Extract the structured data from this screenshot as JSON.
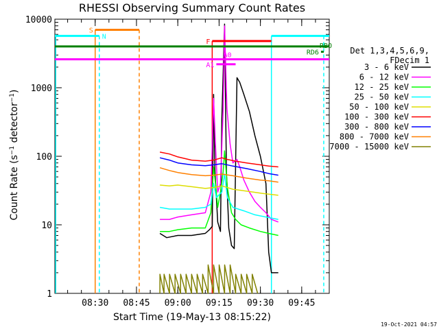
{
  "chart_data": {
    "type": "line",
    "title": "RHESSI Observing Summary Count Rates",
    "xlabel": "Start Time (19-May-13 08:15:22)",
    "ylabel": "Count Rate (s-1 detector-1)",
    "ylabel_parts": {
      "base": "Count Rate (s",
      "sup1": "−1",
      "mid": " detector",
      "sup2": "−1",
      "end": ")"
    },
    "yscale": "log",
    "ylim": [
      1,
      10000
    ],
    "xlim": [
      "08:15:22",
      "09:55:00"
    ],
    "xticks": [
      "08:30",
      "08:45",
      "09:00",
      "09:15",
      "09:30",
      "09:45"
    ],
    "yticks": [
      "1",
      "10",
      "100",
      "1000",
      "10000"
    ],
    "legend_header": [
      "Det 1,3,4,5,6,9,",
      "FDecim 1"
    ],
    "legend_location": "right",
    "series": [
      {
        "name": "3 - 6 keV",
        "color": "#000000",
        "points": [
          [
            "08:53:30",
            7.5
          ],
          [
            "08:56:00",
            6.5
          ],
          [
            "09:00:00",
            7.0
          ],
          [
            "09:05:00",
            7.0
          ],
          [
            "09:10:00",
            7.5
          ],
          [
            "09:11:30",
            8.5
          ],
          [
            "09:12:30",
            9.5
          ],
          [
            "09:13:00",
            800
          ],
          [
            "09:13:30",
            60
          ],
          [
            "09:14:30",
            11
          ],
          [
            "09:15:30",
            8
          ],
          [
            "09:16:00",
            350
          ],
          [
            "09:17:00",
            8500
          ],
          [
            "09:17:40",
            60
          ],
          [
            "09:18:30",
            9
          ],
          [
            "09:19:30",
            5
          ],
          [
            "09:20:30",
            4.5
          ],
          [
            "09:21:30",
            1400
          ],
          [
            "09:22:30",
            1200
          ],
          [
            "09:24:00",
            800
          ],
          [
            "09:26:00",
            450
          ],
          [
            "09:28:00",
            200
          ],
          [
            "09:30:00",
            100
          ],
          [
            "09:32:00",
            40
          ],
          [
            "09:33:00",
            4
          ],
          [
            "09:34:00",
            2
          ],
          [
            "09:36:30",
            2
          ]
        ]
      },
      {
        "name": "6 - 12 keV",
        "color": "#ff00ff",
        "points": [
          [
            "08:53:30",
            12
          ],
          [
            "08:57:00",
            12
          ],
          [
            "09:00:00",
            13
          ],
          [
            "09:05:00",
            14
          ],
          [
            "09:10:00",
            15
          ],
          [
            "09:12:00",
            30
          ],
          [
            "09:13:00",
            700
          ],
          [
            "09:13:40",
            150
          ],
          [
            "09:14:30",
            30
          ],
          [
            "09:15:30",
            40
          ],
          [
            "09:16:30",
            500
          ],
          [
            "09:17:00",
            8000
          ],
          [
            "09:17:50",
            500
          ],
          [
            "09:19:00",
            150
          ],
          [
            "09:20:00",
            80
          ],
          [
            "09:21:30",
            90
          ],
          [
            "09:22:30",
            70
          ],
          [
            "09:24:00",
            45
          ],
          [
            "09:26:00",
            30
          ],
          [
            "09:28:00",
            22
          ],
          [
            "09:30:00",
            18
          ],
          [
            "09:32:00",
            15
          ],
          [
            "09:34:00",
            12
          ],
          [
            "09:36:30",
            11
          ]
        ]
      },
      {
        "name": "12 - 25 keV",
        "color": "#00ff00",
        "points": [
          [
            "08:53:30",
            8
          ],
          [
            "08:57:00",
            8
          ],
          [
            "09:00:00",
            8.5
          ],
          [
            "09:05:00",
            9
          ],
          [
            "09:10:00",
            9
          ],
          [
            "09:12:00",
            15
          ],
          [
            "09:13:00",
            70
          ],
          [
            "09:13:40",
            40
          ],
          [
            "09:14:30",
            18
          ],
          [
            "09:15:30",
            30
          ],
          [
            "09:16:30",
            60
          ],
          [
            "09:17:00",
            120
          ],
          [
            "09:18:00",
            35
          ],
          [
            "09:19:30",
            15
          ],
          [
            "09:21:00",
            12
          ],
          [
            "09:23:00",
            10
          ],
          [
            "09:26:00",
            9
          ],
          [
            "09:30:00",
            8
          ],
          [
            "09:33:00",
            7.5
          ],
          [
            "09:36:30",
            7
          ]
        ]
      },
      {
        "name": "25 - 50 keV",
        "color": "#00ffff",
        "points": [
          [
            "08:53:30",
            18
          ],
          [
            "08:57:00",
            17
          ],
          [
            "09:00:00",
            17
          ],
          [
            "09:05:00",
            17
          ],
          [
            "09:10:00",
            18
          ],
          [
            "09:12:00",
            20
          ],
          [
            "09:13:00",
            40
          ],
          [
            "09:14:00",
            25
          ],
          [
            "09:16:00",
            30
          ],
          [
            "09:17:00",
            55
          ],
          [
            "09:18:00",
            25
          ],
          [
            "09:20:00",
            18
          ],
          [
            "09:24:00",
            16
          ],
          [
            "09:28:00",
            14
          ],
          [
            "09:32:00",
            13
          ],
          [
            "09:36:30",
            12
          ]
        ]
      },
      {
        "name": "50 - 100 keV",
        "color": "#dddd00",
        "points": [
          [
            "08:53:30",
            38
          ],
          [
            "08:57:00",
            37
          ],
          [
            "09:00:00",
            38
          ],
          [
            "09:05:00",
            36
          ],
          [
            "09:10:00",
            34
          ],
          [
            "09:13:00",
            35
          ],
          [
            "09:16:00",
            37
          ],
          [
            "09:20:00",
            33
          ],
          [
            "09:25:00",
            31
          ],
          [
            "09:30:00",
            29
          ],
          [
            "09:33:00",
            28
          ],
          [
            "09:36:30",
            27
          ]
        ]
      },
      {
        "name": "100 - 300 keV",
        "color": "#ff0000",
        "points": [
          [
            "08:53:30",
            115
          ],
          [
            "08:57:00",
            108
          ],
          [
            "09:00:00",
            98
          ],
          [
            "09:05:00",
            88
          ],
          [
            "09:10:00",
            85
          ],
          [
            "09:13:00",
            88
          ],
          [
            "09:16:00",
            95
          ],
          [
            "09:18:00",
            90
          ],
          [
            "09:21:00",
            85
          ],
          [
            "09:25:00",
            80
          ],
          [
            "09:30:00",
            75
          ],
          [
            "09:33:00",
            72
          ],
          [
            "09:36:30",
            70
          ]
        ]
      },
      {
        "name": "300 - 800 keV",
        "color": "#0000ff",
        "points": [
          [
            "08:53:30",
            95
          ],
          [
            "08:57:00",
            88
          ],
          [
            "09:00:00",
            80
          ],
          [
            "09:05:00",
            75
          ],
          [
            "09:10:00",
            73
          ],
          [
            "09:13:00",
            75
          ],
          [
            "09:16:00",
            78
          ],
          [
            "09:20:00",
            72
          ],
          [
            "09:25:00",
            66
          ],
          [
            "09:30:00",
            60
          ],
          [
            "09:33:00",
            56
          ],
          [
            "09:36:30",
            53
          ]
        ]
      },
      {
        "name": "800 - 7000 keV",
        "color": "#ff8000",
        "points": [
          [
            "08:53:30",
            68
          ],
          [
            "08:57:00",
            62
          ],
          [
            "09:00:00",
            58
          ],
          [
            "09:05:00",
            54
          ],
          [
            "09:10:00",
            52
          ],
          [
            "09:13:00",
            53
          ],
          [
            "09:16:00",
            55
          ],
          [
            "09:20:00",
            52
          ],
          [
            "09:25:00",
            48
          ],
          [
            "09:30:00",
            45
          ],
          [
            "09:33:00",
            44
          ],
          [
            "09:36:30",
            42
          ]
        ]
      },
      {
        "name": "7000 - 15000 keV",
        "color": "#808000",
        "points": [
          [
            "08:53:30",
            1.0
          ],
          [
            "08:53:31",
            1.9
          ],
          [
            "08:55:00",
            1.0
          ],
          [
            "08:55:01",
            1.9
          ],
          [
            "08:57:00",
            1.0
          ],
          [
            "08:57:01",
            1.9
          ],
          [
            "08:59:00",
            1.0
          ],
          [
            "08:59:01",
            1.9
          ],
          [
            "09:01:00",
            1.0
          ],
          [
            "09:01:01",
            1.9
          ],
          [
            "09:03:00",
            1.0
          ],
          [
            "09:03:01",
            1.9
          ],
          [
            "09:05:00",
            1.0
          ],
          [
            "09:05:01",
            1.9
          ],
          [
            "09:07:00",
            1.0
          ],
          [
            "09:07:01",
            1.9
          ],
          [
            "09:09:00",
            1.0
          ],
          [
            "09:09:01",
            1.9
          ],
          [
            "09:11:00",
            1.0
          ],
          [
            "09:11:01",
            2.6
          ],
          [
            "09:13:00",
            1.0
          ],
          [
            "09:13:01",
            2.6
          ],
          [
            "09:15:00",
            1.0
          ],
          [
            "09:15:01",
            2.6
          ],
          [
            "09:17:00",
            1.0
          ],
          [
            "09:17:01",
            2.6
          ],
          [
            "09:19:00",
            1.0
          ],
          [
            "09:19:01",
            2.6
          ],
          [
            "09:21:00",
            1.0
          ],
          [
            "09:21:01",
            1.9
          ],
          [
            "09:23:00",
            1.0
          ],
          [
            "09:23:01",
            1.9
          ],
          [
            "09:25:00",
            1.0
          ],
          [
            "09:25:01",
            1.9
          ],
          [
            "09:27:00",
            1.0
          ],
          [
            "09:27:01",
            1.9
          ],
          [
            "09:29:00",
            1.0
          ]
        ]
      }
    ],
    "flags": [
      {
        "label": "S",
        "color": "#ff8000",
        "start": "08:30:00",
        "end": "08:46:00",
        "level": 7000,
        "label_at": "left"
      },
      {
        "label": "N",
        "color": "#00ffff",
        "start": "08:15:22",
        "end": "08:31:30",
        "level": 5700,
        "label_at": "right"
      },
      {
        "label": "N",
        "color": "#00ffff",
        "start": "09:34:00",
        "end": "09:55:00",
        "level": 5700,
        "label_at": "none"
      },
      {
        "label": "F",
        "color": "#ff0000",
        "start": "09:12:30",
        "end": "09:34:00",
        "level": 4800,
        "label_at": "left"
      },
      {
        "label": "RBO",
        "color": "#008000",
        "start": "08:15:22",
        "end": "09:55:00",
        "level": 4000,
        "label_at": "right-end"
      },
      {
        "label": "RD6",
        "color": "#008000",
        "start": "09:52:00",
        "end": "09:53:00",
        "level": 3350,
        "label_at": "left"
      },
      {
        "label": "A0",
        "color": "#ff00ff",
        "start": "08:15:22",
        "end": "09:17:00",
        "level": 2600,
        "label_at": "none"
      },
      {
        "label": "A0",
        "color": "#ff00ff",
        "start": "09:20:00",
        "end": "09:55:00",
        "level": 2600,
        "label_at": "none"
      },
      {
        "label": "A0",
        "color": "#ff00ff",
        "start": "09:17:00",
        "end": "09:20:00",
        "level": 2600,
        "label_at": "right-top"
      },
      {
        "label": "A1",
        "color": "#ff00ff",
        "start": "09:14:00",
        "end": "09:21:00",
        "level": 2200,
        "label_at": "left"
      }
    ],
    "vlines": [
      {
        "time": "08:15:40",
        "color": "#00ffff",
        "style": "solid",
        "top": 6000
      },
      {
        "time": "08:30:00",
        "color": "#ff8000",
        "style": "solid",
        "top": 7000
      },
      {
        "time": "08:31:30",
        "color": "#00ffff",
        "style": "dashed",
        "top": 5700
      },
      {
        "time": "08:46:00",
        "color": "#ff8000",
        "style": "dashed",
        "top": 7000
      },
      {
        "time": "09:12:30",
        "color": "#ff0000",
        "style": "solid",
        "top": 4800
      },
      {
        "time": "09:34:00",
        "color": "#00ffff",
        "style": "solid",
        "top": 5700
      },
      {
        "time": "09:53:00",
        "color": "#00ffff",
        "style": "dashed",
        "top": 5700
      }
    ],
    "timestamp": "19-Oct-2021 04:57"
  }
}
